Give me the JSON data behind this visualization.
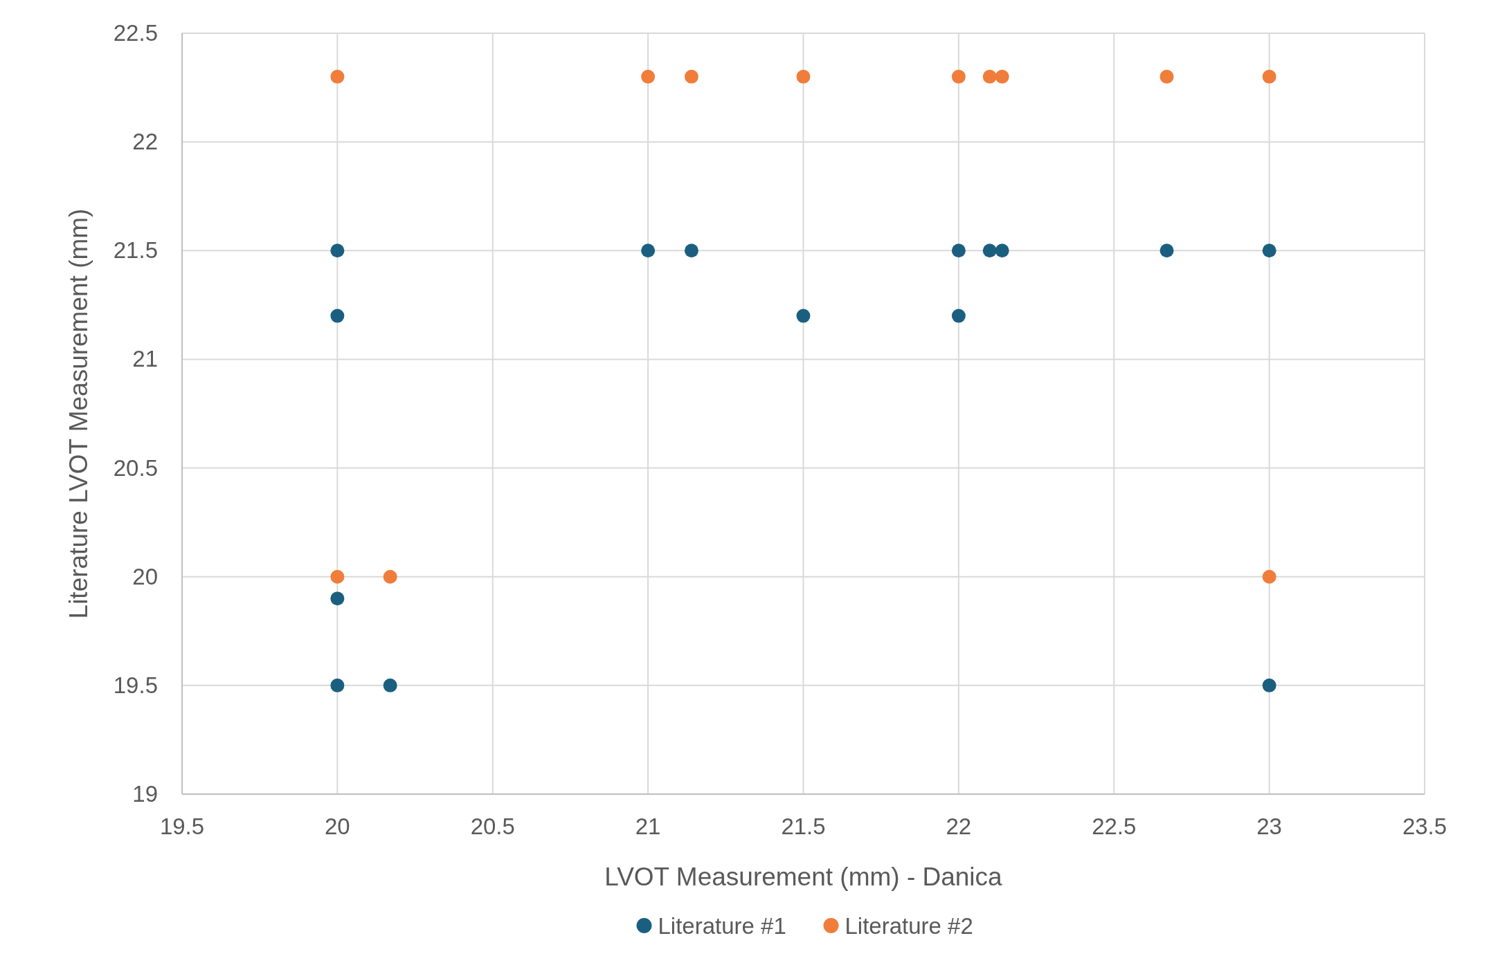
{
  "chart_data": {
    "type": "scatter",
    "xlabel": "LVOT Measurement (mm) - Danica",
    "ylabel": "Literature LVOT Measurement (mm)",
    "xlim": [
      19.5,
      23.5
    ],
    "xticks": [
      19.5,
      20,
      20.5,
      21,
      21.5,
      22,
      22.5,
      23,
      23.5
    ],
    "ylim": [
      19,
      22.5
    ],
    "yticks": [
      19,
      19.5,
      20,
      20.5,
      21,
      21.5,
      22,
      22.5
    ],
    "grid": true,
    "legend": "bottom",
    "marker": "circle",
    "series": [
      {
        "name": "Literature #1",
        "color": "#1b5f80",
        "x": [
          20,
          20,
          20,
          20,
          20.17,
          21,
          21.14,
          21.5,
          22,
          22,
          22.1,
          22.14,
          22.67,
          23,
          23
        ],
        "values": [
          21.5,
          21.2,
          19.9,
          19.5,
          19.5,
          21.5,
          21.5,
          21.2,
          21.5,
          21.2,
          21.5,
          21.5,
          21.5,
          21.5,
          19.5
        ]
      },
      {
        "name": "Literature #2",
        "color": "#f07d3a",
        "x": [
          20,
          21,
          21.14,
          21.5,
          22,
          22.1,
          22.14,
          22.67,
          23,
          20,
          20.17,
          23
        ],
        "values": [
          22.3,
          22.3,
          22.3,
          22.3,
          22.3,
          22.3,
          22.3,
          22.3,
          22.3,
          20,
          20,
          20
        ]
      }
    ]
  }
}
